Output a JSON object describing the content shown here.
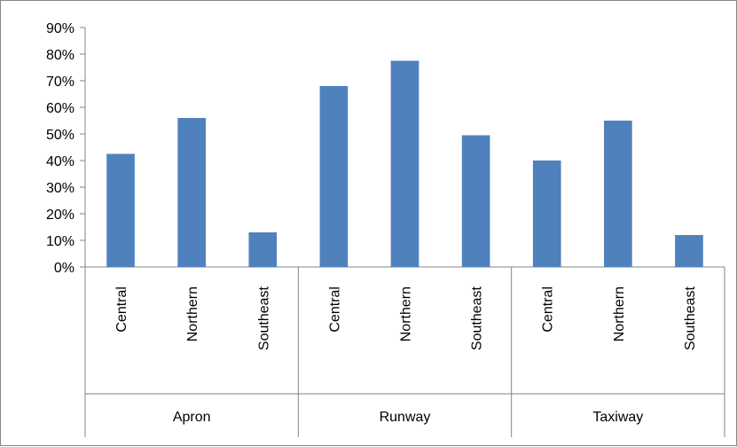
{
  "chart_data": {
    "type": "bar",
    "title": "",
    "xlabel": "",
    "ylabel": "",
    "ylim": [
      0,
      90
    ],
    "y_ticks": [
      "0%",
      "10%",
      "20%",
      "30%",
      "40%",
      "50%",
      "60%",
      "70%",
      "80%",
      "90%"
    ],
    "y_unit": "%",
    "grid": false,
    "legend": "none",
    "bar_color": "#4F81BD",
    "groups": [
      {
        "name": "Apron",
        "categories": [
          "Central",
          "Northern",
          "Southeast"
        ],
        "values": [
          42.5,
          56,
          13
        ]
      },
      {
        "name": "Runway",
        "categories": [
          "Central",
          "Northern",
          "Southeast"
        ],
        "values": [
          68,
          77.5,
          49.5
        ]
      },
      {
        "name": "Taxiway",
        "categories": [
          "Central",
          "Northern",
          "Southeast"
        ],
        "values": [
          40,
          55,
          12
        ]
      }
    ]
  }
}
